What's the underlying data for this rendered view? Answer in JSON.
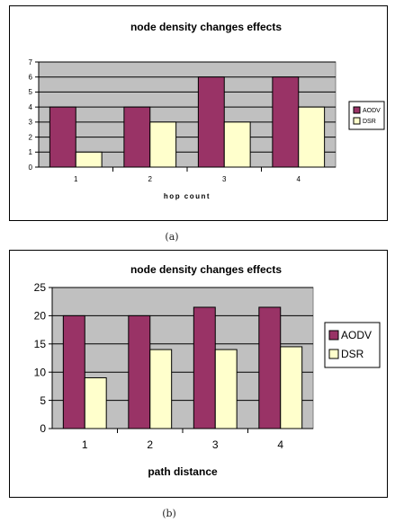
{
  "captions": [
    "(a)",
    "(b)"
  ],
  "colors": {
    "plot_bg": "#c0c0c0",
    "aodv": "#993366",
    "dsr": "#ffffcc",
    "grid": "#000000"
  },
  "chart_data": [
    {
      "type": "bar",
      "title": "node density changes effects",
      "xlabel": "hop count",
      "ylabel": "",
      "categories": [
        "1",
        "2",
        "3",
        "4"
      ],
      "ylim": [
        0,
        7
      ],
      "yticks": [
        0,
        1,
        2,
        3,
        4,
        5,
        6,
        7
      ],
      "grid": true,
      "legend": "right",
      "series": [
        {
          "name": "AODV",
          "color": "#993366",
          "values": [
            4,
            4,
            6,
            6
          ]
        },
        {
          "name": "DSR",
          "color": "#ffffcc",
          "values": [
            1,
            3,
            3,
            4
          ]
        }
      ]
    },
    {
      "type": "bar",
      "title": "node density changes effects",
      "xlabel": "path distance",
      "ylabel": "",
      "categories": [
        "1",
        "2",
        "3",
        "4"
      ],
      "ylim": [
        0,
        25
      ],
      "yticks": [
        0,
        5,
        10,
        15,
        20,
        25
      ],
      "grid": true,
      "legend": "right",
      "series": [
        {
          "name": "AODV",
          "color": "#993366",
          "values": [
            20,
            20,
            21.5,
            21.5
          ]
        },
        {
          "name": "DSR",
          "color": "#ffffcc",
          "values": [
            9,
            14,
            14,
            14.5
          ]
        }
      ]
    }
  ]
}
